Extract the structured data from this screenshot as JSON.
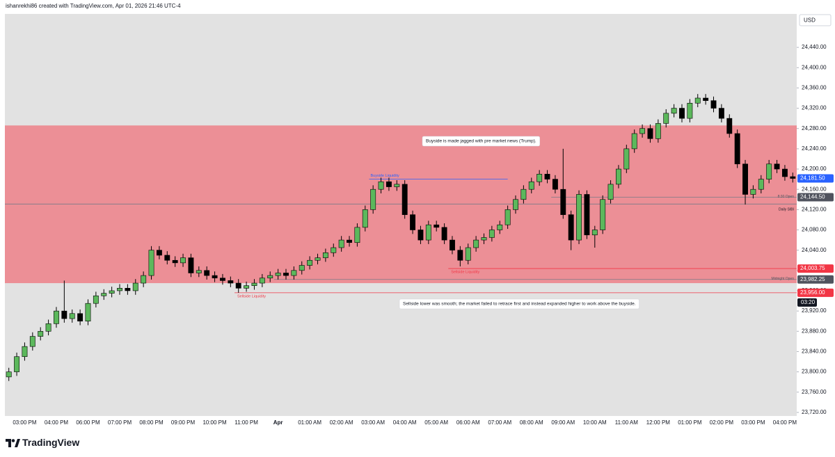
{
  "chart_data": {
    "type": "candlestick",
    "title": "ishanrekhi86 created with TradingView.com, Apr 01, 2026 21:46 UTC-4",
    "currency": "USD",
    "brand": "TradingView",
    "up_color": "#5cb85c",
    "down_color": "#000000",
    "wick_color": "#000000",
    "categories": [
      null,
      null,
      "03:00 PM",
      null,
      null,
      null,
      "04:00 PM",
      null,
      null,
      null,
      "06:00 PM",
      null,
      null,
      null,
      "07:00 PM",
      null,
      null,
      null,
      "08:00 PM",
      null,
      null,
      null,
      "09:00 PM",
      null,
      null,
      null,
      "10:00 PM",
      null,
      null,
      null,
      "11:00 PM",
      null,
      null,
      null,
      "Apr",
      null,
      null,
      null,
      "01:00 AM",
      null,
      null,
      null,
      "02:00 AM",
      null,
      null,
      null,
      "03:00 AM",
      null,
      null,
      null,
      "04:00 AM",
      null,
      null,
      null,
      "05:00 AM",
      null,
      null,
      null,
      "06:00 AM",
      null,
      null,
      null,
      "07:00 AM",
      null,
      null,
      null,
      "08:00 AM",
      null,
      null,
      null,
      "09:00 AM",
      null,
      null,
      null,
      "10:00 AM",
      null,
      null,
      null,
      "11:00 AM",
      null,
      null,
      null,
      "12:00 PM",
      null,
      null,
      null,
      "01:00 PM",
      null,
      null,
      null,
      "02:00 PM",
      null,
      null,
      null,
      "03:00 PM",
      null,
      null,
      null,
      "04:00 PM",
      null
    ],
    "open": [
      23790,
      23800,
      23830,
      23850,
      23870,
      23880,
      23895,
      23920,
      23905,
      23915,
      23900,
      23935,
      23950,
      23955,
      23960,
      23965,
      23960,
      23975,
      23990,
      24040,
      24030,
      24020,
      24015,
      24025,
      23995,
      24000,
      23990,
      23985,
      23980,
      23975,
      23965,
      23970,
      23975,
      23985,
      23990,
      23995,
      23990,
      24000,
      24010,
      24020,
      24025,
      24035,
      24045,
      24060,
      24055,
      24085,
      24120,
      24160,
      24175,
      24165,
      24170,
      24110,
      24080,
      24060,
      24090,
      24085,
      24060,
      24040,
      24020,
      24045,
      24060,
      24065,
      24080,
      24090,
      24120,
      24140,
      24160,
      24175,
      24190,
      24180,
      24160,
      24110,
      24060,
      24150,
      24070,
      24080,
      24140,
      24170,
      24200,
      24240,
      24270,
      24280,
      24260,
      24290,
      24310,
      24320,
      24300,
      24330,
      24340,
      24335,
      24320,
      24300,
      24270,
      24210,
      24150,
      24160,
      24180,
      24210,
      24200,
      24185
    ],
    "high": [
      23808,
      23838,
      23858,
      23878,
      23888,
      23903,
      23928,
      23980,
      23923,
      23923,
      23943,
      23958,
      23963,
      23968,
      23973,
      23973,
      23983,
      23998,
      24048,
      24048,
      24038,
      24028,
      24033,
      24033,
      24008,
      24008,
      23998,
      23993,
      23988,
      23983,
      23978,
      23983,
      23993,
      23998,
      24003,
      24003,
      24008,
      24018,
      24028,
      24033,
      24043,
      24053,
      24068,
      24068,
      24093,
      24128,
      24168,
      24183,
      24183,
      24178,
      24178,
      24118,
      24088,
      24098,
      24098,
      24093,
      24068,
      24048,
      24053,
      24068,
      24073,
      24088,
      24098,
      24128,
      24148,
      24168,
      24183,
      24198,
      24198,
      24188,
      24240,
      24118,
      24158,
      24158,
      24088,
      24148,
      24178,
      24208,
      24248,
      24278,
      24288,
      24288,
      24298,
      24318,
      24328,
      24328,
      24338,
      24348,
      24348,
      24343,
      24328,
      24308,
      24278,
      24218,
      24168,
      24188,
      24218,
      24218,
      24208,
      24193
    ],
    "low": [
      23782,
      23792,
      23822,
      23842,
      23862,
      23872,
      23887,
      23897,
      23897,
      23892,
      23892,
      23927,
      23942,
      23947,
      23952,
      23952,
      23952,
      23967,
      23982,
      24022,
      24012,
      24007,
      24007,
      23987,
      23987,
      23982,
      23977,
      23972,
      23967,
      23956,
      23958,
      23962,
      23967,
      23977,
      23982,
      23982,
      23982,
      23992,
      24002,
      24012,
      24017,
      24027,
      24037,
      24047,
      24047,
      24077,
      24112,
      24152,
      24157,
      24157,
      24102,
      24072,
      24052,
      24052,
      24077,
      24052,
      24032,
      24008,
      24012,
      24037,
      24052,
      24057,
      24072,
      24082,
      24112,
      24132,
      24152,
      24167,
      24172,
      24152,
      24102,
      24040,
      24052,
      24062,
      24045,
      24072,
      24132,
      24162,
      24192,
      24232,
      24262,
      24252,
      24252,
      24282,
      24302,
      24292,
      24292,
      24322,
      24327,
      24312,
      24292,
      24262,
      24202,
      24130,
      24142,
      24152,
      24172,
      24192,
      24177,
      24173.5
    ],
    "close": [
      23800,
      23830,
      23850,
      23870,
      23880,
      23895,
      23920,
      23905,
      23915,
      23900,
      23935,
      23950,
      23955,
      23960,
      23965,
      23960,
      23975,
      23990,
      24040,
      24030,
      24020,
      24015,
      24025,
      23995,
      24000,
      23990,
      23985,
      23980,
      23975,
      23965,
      23970,
      23975,
      23985,
      23990,
      23995,
      23990,
      24000,
      24010,
      24020,
      24025,
      24035,
      24045,
      24060,
      24055,
      24085,
      24120,
      24160,
      24175,
      24165,
      24170,
      24110,
      24080,
      24060,
      24090,
      24085,
      24060,
      24040,
      24020,
      24045,
      24060,
      24065,
      24080,
      24090,
      24120,
      24140,
      24160,
      24175,
      24190,
      24180,
      24160,
      24110,
      24060,
      24150,
      24070,
      24080,
      24140,
      24170,
      24200,
      24240,
      24270,
      24280,
      24260,
      24290,
      24310,
      24320,
      24300,
      24330,
      24340,
      24335,
      24320,
      24300,
      24270,
      24210,
      24150,
      24160,
      24180,
      24210,
      24200,
      24185,
      24181.5
    ],
    "ylim": [
      23713,
      24506
    ],
    "yticks": [
      {
        "value": 23720,
        "label": "23,720.00"
      },
      {
        "value": 23760,
        "label": "23,760.00"
      },
      {
        "value": 23800,
        "label": "23,800.00"
      },
      {
        "value": 23840,
        "label": "23,840.00"
      },
      {
        "value": 23880,
        "label": "23,880.00"
      },
      {
        "value": 23920,
        "label": "23,920.00"
      },
      {
        "value": 23960,
        "label": "23,960.00"
      },
      {
        "value": 24000,
        "label": "24,000.00"
      },
      {
        "value": 24040,
        "label": "24,040.00"
      },
      {
        "value": 24080,
        "label": "24,080.00"
      },
      {
        "value": 24120,
        "label": "24,120.00"
      },
      {
        "value": 24160,
        "label": "24,160.00"
      },
      {
        "value": 24200,
        "label": "24,200.00"
      },
      {
        "value": 24240,
        "label": "24,240.00"
      },
      {
        "value": 24280,
        "label": "24,280.00"
      },
      {
        "value": 24320,
        "label": "24,320.00"
      },
      {
        "value": 24360,
        "label": "24,360.00"
      },
      {
        "value": 24400,
        "label": "24,400.00"
      },
      {
        "value": 24440,
        "label": "24,440.00"
      }
    ],
    "zone": {
      "low": 23975,
      "high": 24286,
      "color": "#ec8f96"
    },
    "levels": [
      {
        "name": "Buyside Liquidity",
        "value": 24180,
        "color": "#2962ff",
        "from": 46,
        "to": 63
      },
      {
        "name": "Sellside Liquidity",
        "value": 23956,
        "color": "#f23645",
        "from": 29,
        "price_label": "23,956.00"
      },
      {
        "name": "Sellside Liquidity",
        "value": 24003.75,
        "color": "#f23645",
        "from": 56,
        "price_label": "24,003.75"
      },
      {
        "name": "8:30 Open",
        "value": 24144.5,
        "color": "#787b86",
        "from": 69,
        "price_label": "24,144.50",
        "label_color": "#50535e"
      },
      {
        "name": "Daily SIBI",
        "value": 24131,
        "color": "#787b86",
        "from": 0
      },
      {
        "name": "Midnight Open",
        "value": 23982.25,
        "color": "#787b86",
        "from": 34,
        "price_label": "23,982.25",
        "label_color": "#50535e"
      }
    ],
    "last_price": {
      "value": 24181.5,
      "label": "24,181.50",
      "color": "#2962ff"
    },
    "countdown": "03:20",
    "annotations": [
      "Buyside is made jagged with pre market news (Trump).",
      "Sellside lower was smooth; the market failed to retrace first and instead expanded higher to work above the buyside."
    ]
  }
}
